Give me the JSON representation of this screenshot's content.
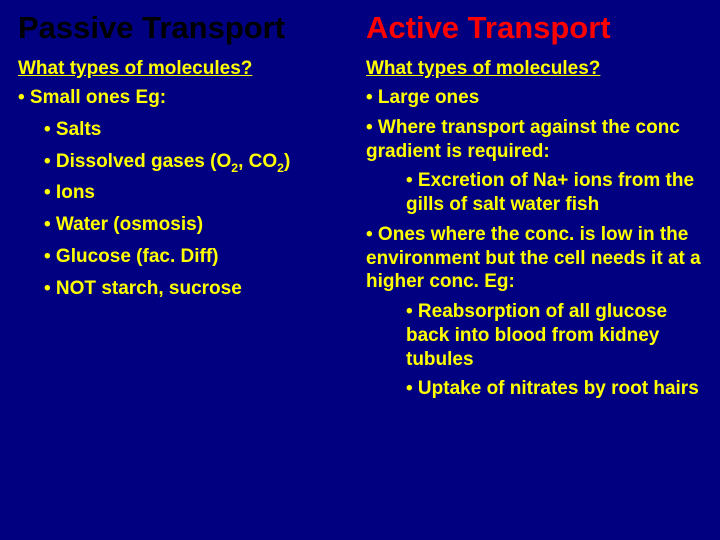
{
  "title_left": "Passive Transport",
  "title_right": "Active Transport",
  "left": {
    "heading": "What types of molecules?",
    "lvl0": "• Small ones Eg:",
    "i1": "• Salts",
    "i2a": "• Dissolved gases (O",
    "i2b": "2",
    "i2c": ", CO",
    "i2d": "2",
    "i2e": ")",
    "i3": "• Ions",
    "i4": "• Water (osmosis)",
    "i5": "• Glucose (fac. Diff)",
    "i6": "• NOT starch, sucrose"
  },
  "right": {
    "heading": "What types of molecules?",
    "r1": "• Large ones",
    "r2": "• Where transport against the conc gradient is required:",
    "r2a": "• Excretion of Na+ ions from the gills of salt water fish",
    "r3": "• Ones where the conc. is low in the environment but the cell needs it at a higher conc. Eg:",
    "r3a": "• Reabsorption of all glucose back into blood from kidney tubules",
    "r3b": "• Uptake of nitrates by root hairs"
  },
  "colors": {
    "background": "#000080",
    "body_text": "#ffff00",
    "title_left": "#000000",
    "title_right": "#ff0000"
  }
}
